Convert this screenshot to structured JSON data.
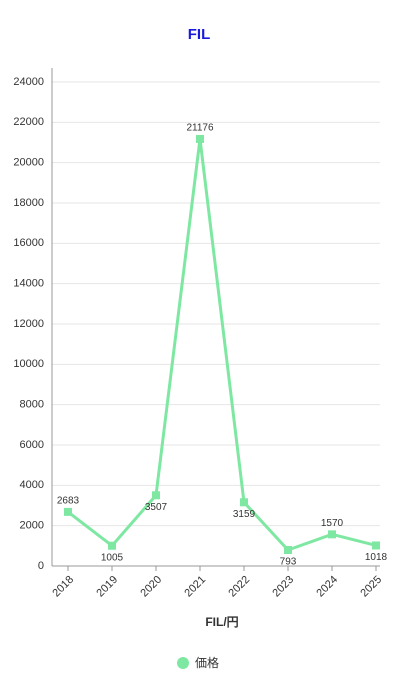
{
  "chart_data": {
    "type": "line",
    "title": "FIL",
    "x_label": "FIL/円",
    "categories": [
      "2018",
      "2019",
      "2020",
      "2021",
      "2022",
      "2023",
      "2024",
      "2025"
    ],
    "series": [
      {
        "name": "価格",
        "color": "#7ee8a2",
        "values": [
          2683,
          1005,
          3507,
          21176,
          3159,
          793,
          1570,
          1018
        ]
      }
    ],
    "ylim": [
      0,
      24000
    ],
    "yticks": [
      0,
      2000,
      4000,
      6000,
      8000,
      10000,
      12000,
      14000,
      16000,
      18000,
      20000,
      22000,
      24000
    ],
    "grid": true
  }
}
